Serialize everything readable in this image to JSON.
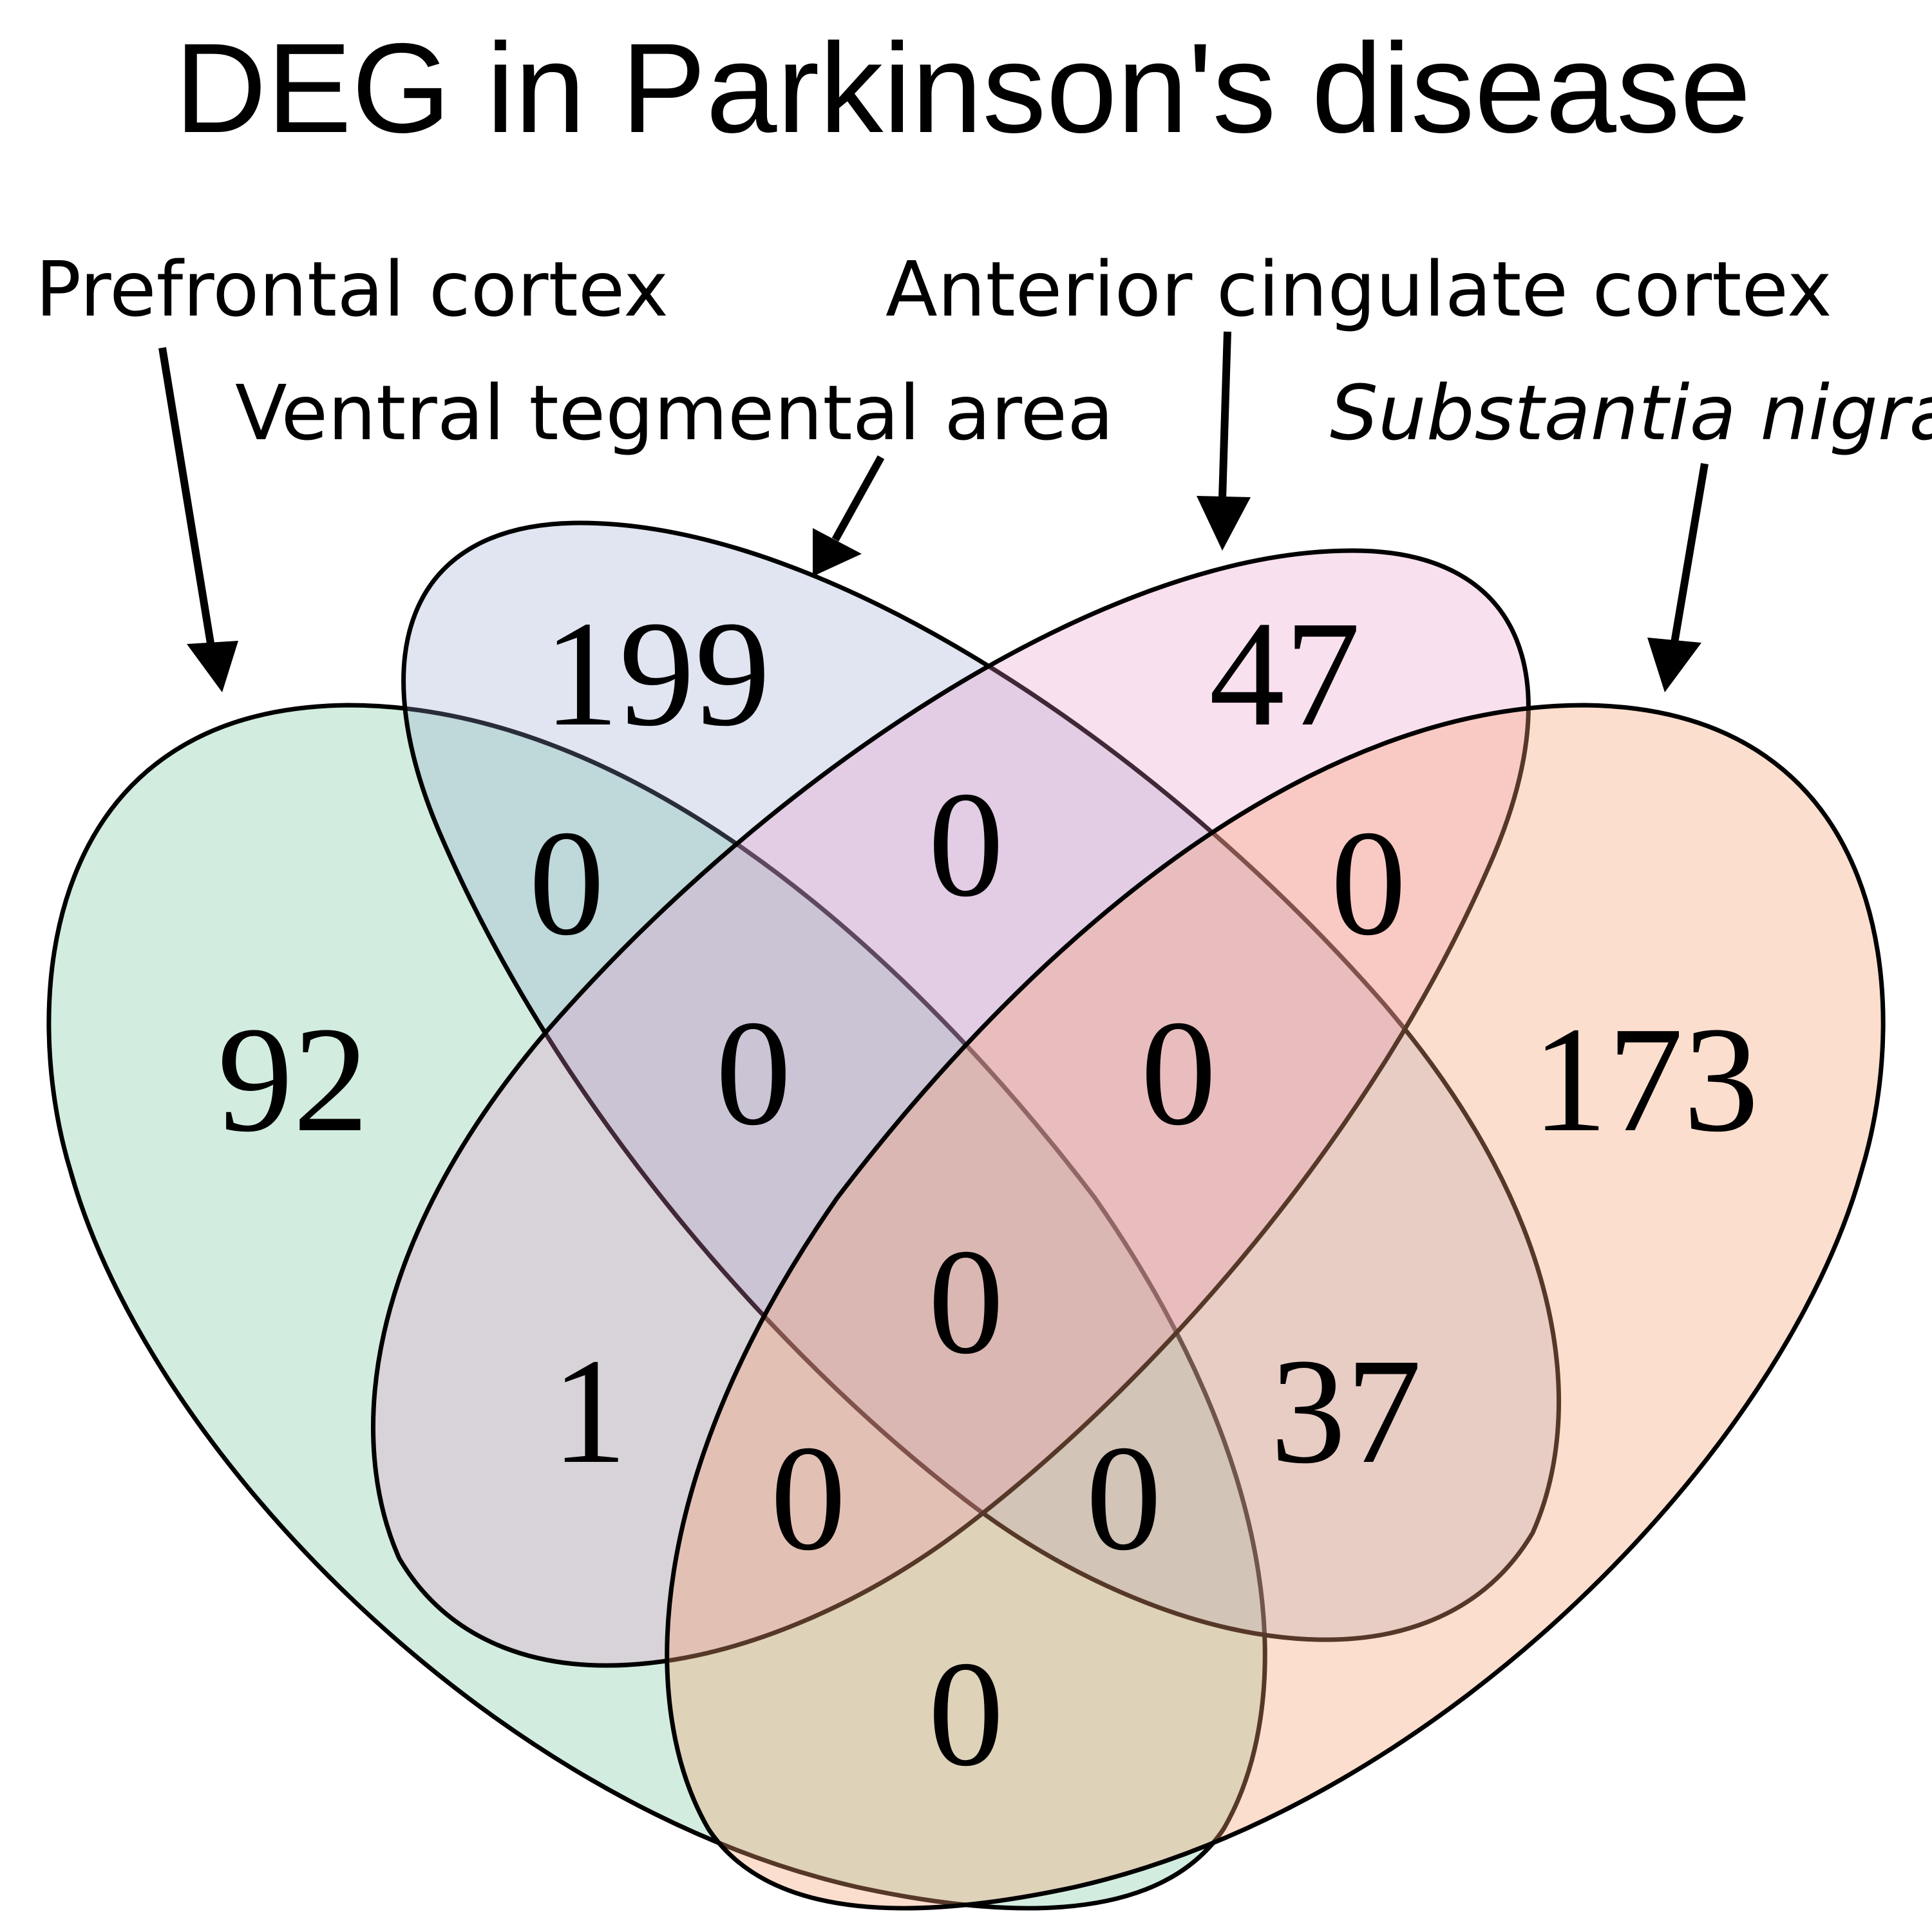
{
  "title": "DEG in Parkinson's disease",
  "sets": {
    "prefrontal_cortex": {
      "label": "Prefrontal cortex",
      "color": "#7fcca4"
    },
    "ventral_tegmental_area": {
      "label": "Ventral tegmental area",
      "color": "#8ea2cd"
    },
    "anterior_cingulate_cortex": {
      "label": "Anterior cingulate cortex",
      "color": "#e88fc7"
    },
    "substantia_nigra": {
      "label": "Substantia nigra",
      "color": "#f6a074"
    }
  },
  "counts": {
    "pfc_only": "92",
    "vta_only": "199",
    "acc_only": "47",
    "sn_only": "173",
    "pfc_vta": "0",
    "vta_acc": "0",
    "acc_sn": "0",
    "pfc_vta_acc": "0",
    "vta_acc_sn": "0",
    "all_four": "0",
    "pfc_acc": "1",
    "vta_sn": "37",
    "pfc_acc_sn": "0",
    "pfc_vta_sn": "0",
    "pfc_sn": "0"
  }
}
